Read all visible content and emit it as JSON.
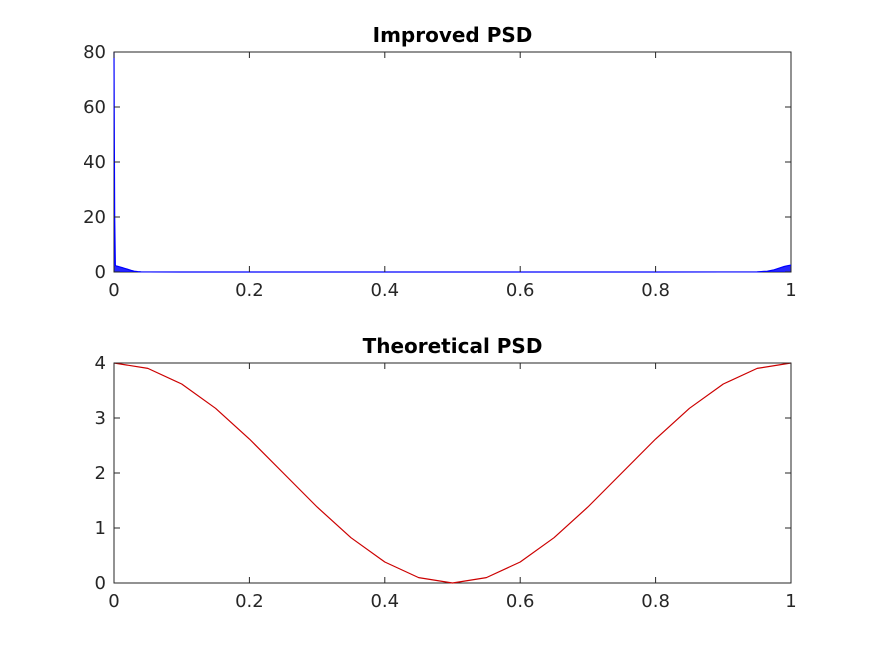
{
  "chart_data": [
    {
      "type": "line",
      "title": "Improved PSD",
      "xlabel": "",
      "ylabel": "",
      "xlim": [
        0,
        1
      ],
      "ylim": [
        0,
        80
      ],
      "xticks": [
        0,
        0.2,
        0.4,
        0.6,
        0.8,
        1
      ],
      "xtick_labels": [
        "0",
        "0.2",
        "0.4",
        "0.6",
        "0.8",
        "1"
      ],
      "yticks": [
        0,
        20,
        40,
        60,
        80
      ],
      "ytick_labels": [
        "0",
        "20",
        "40",
        "60",
        "80"
      ],
      "grid": false,
      "color": "#0000ff",
      "series": [
        {
          "x": [
            0,
            0.0005,
            0.001,
            0.002,
            0.003,
            0.005,
            0.008,
            0.012,
            0.016,
            0.02,
            0.025,
            0.03,
            0.035,
            0.04,
            0.05,
            0.1,
            0.2,
            0.3,
            0.4,
            0.5,
            0.6,
            0.7,
            0.8,
            0.9,
            0.95,
            0.965,
            0.975,
            0.98,
            0.985,
            0.99,
            0.995,
            1
          ],
          "y": [
            80,
            46,
            20,
            2.5,
            2.2,
            2.1,
            1.9,
            1.6,
            1.3,
            1.0,
            0.6,
            0.3,
            0.15,
            0.05,
            0.02,
            0.01,
            0.01,
            0.01,
            0.01,
            0.01,
            0.01,
            0.01,
            0.01,
            0.02,
            0.05,
            0.3,
            0.8,
            1.2,
            1.6,
            2.0,
            2.3,
            2.5
          ]
        }
      ]
    },
    {
      "type": "line",
      "title": "Theoretical PSD",
      "xlabel": "",
      "ylabel": "",
      "xlim": [
        0,
        1
      ],
      "ylim": [
        0,
        4
      ],
      "xticks": [
        0,
        0.2,
        0.4,
        0.6,
        0.8,
        1
      ],
      "xtick_labels": [
        "0",
        "0.2",
        "0.4",
        "0.6",
        "0.8",
        "1"
      ],
      "yticks": [
        0,
        1,
        2,
        3,
        4
      ],
      "ytick_labels": [
        "0",
        "1",
        "2",
        "3",
        "4"
      ],
      "grid": false,
      "color": "#cc0000",
      "series": [
        {
          "x": [
            0,
            0.05,
            0.1,
            0.15,
            0.2,
            0.25,
            0.3,
            0.35,
            0.4,
            0.45,
            0.5,
            0.55,
            0.6,
            0.65,
            0.7,
            0.75,
            0.8,
            0.85,
            0.9,
            0.95,
            1
          ],
          "y": [
            4.0,
            3.902,
            3.618,
            3.176,
            2.618,
            2.0,
            1.382,
            0.824,
            0.382,
            0.098,
            0.0,
            0.098,
            0.382,
            0.824,
            1.382,
            2.0,
            2.618,
            3.176,
            3.618,
            3.902,
            4.0
          ]
        }
      ]
    }
  ]
}
